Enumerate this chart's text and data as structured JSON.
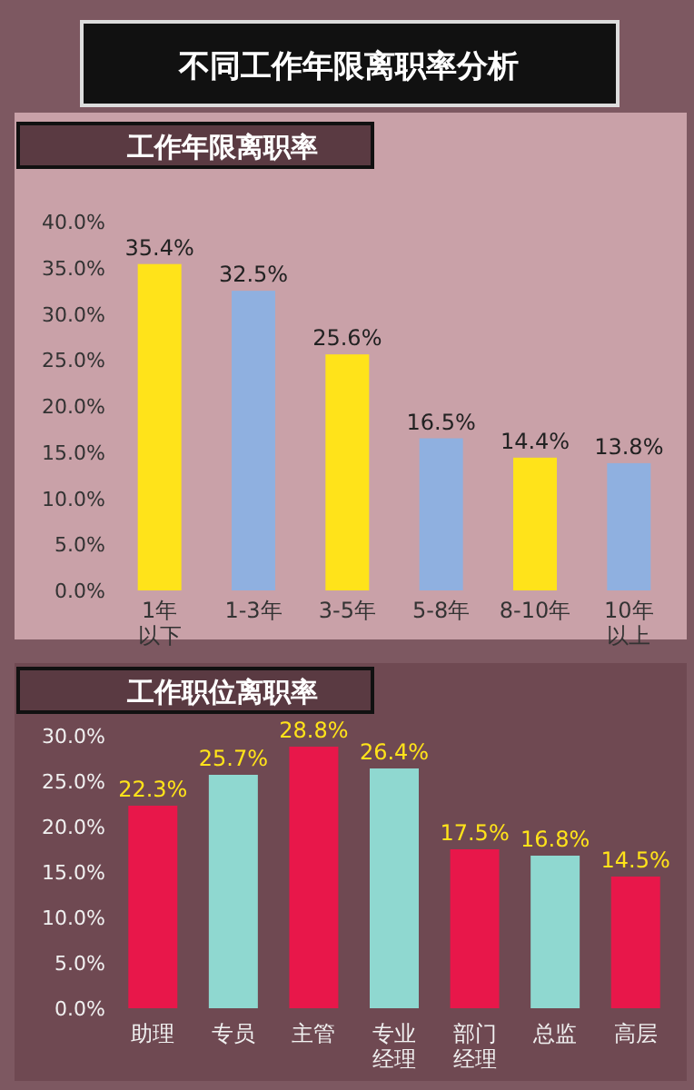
{
  "chart_data": [
    {
      "type": "bar",
      "title": "不同工作年限离职率分析",
      "subtitle": "工作年限离职率",
      "categories": [
        "1年以下",
        "1-3年",
        "3-5年",
        "5-8年",
        "8-10年",
        "10年以上"
      ],
      "values": [
        35.4,
        32.5,
        25.6,
        16.5,
        14.4,
        13.8
      ],
      "colors": [
        "#ffe31a",
        "#8fb0e0",
        "#ffe31a",
        "#8fb0e0",
        "#ffe31a",
        "#8fb0e0"
      ],
      "value_labels": [
        "35.4%",
        "32.5%",
        "25.6%",
        "16.5%",
        "14.4%",
        "13.8%"
      ],
      "ylim": [
        0,
        40
      ],
      "yticks": [
        {
          "value": 0,
          "label": "0.0%"
        },
        {
          "value": 5,
          "label": "5.0%"
        },
        {
          "value": 10,
          "label": "10.0%"
        },
        {
          "value": 15,
          "label": "15.0%"
        },
        {
          "value": 20,
          "label": "20.0%"
        },
        {
          "value": 25,
          "label": "25.0%"
        },
        {
          "value": 30,
          "label": "30.0%"
        },
        {
          "value": 35,
          "label": "35.0%"
        },
        {
          "value": 40,
          "label": "40.0%"
        }
      ]
    },
    {
      "type": "bar",
      "title": "工作职位离职率",
      "categories": [
        "助理",
        "专员",
        "主管",
        "专业经理",
        "部门经理",
        "总监",
        "高层"
      ],
      "values": [
        22.3,
        25.7,
        28.8,
        26.4,
        17.5,
        16.8,
        14.5
      ],
      "colors": [
        "#e8174a",
        "#8fd8d0",
        "#e8174a",
        "#8fd8d0",
        "#e8174a",
        "#8fd8d0",
        "#e8174a"
      ],
      "value_labels": [
        "22.3%",
        "25.7%",
        "28.8%",
        "26.4%",
        "17.5%",
        "16.8%",
        "14.5%"
      ],
      "ylim": [
        0,
        30
      ],
      "yticks": [
        {
          "value": 0,
          "label": "0.0%"
        },
        {
          "value": 5,
          "label": "5.0%"
        },
        {
          "value": 10,
          "label": "10.0%"
        },
        {
          "value": 15,
          "label": "15.0%"
        },
        {
          "value": 20,
          "label": "20.0%"
        },
        {
          "value": 25,
          "label": "25.0%"
        },
        {
          "value": 30,
          "label": "30.0%"
        }
      ]
    }
  ]
}
